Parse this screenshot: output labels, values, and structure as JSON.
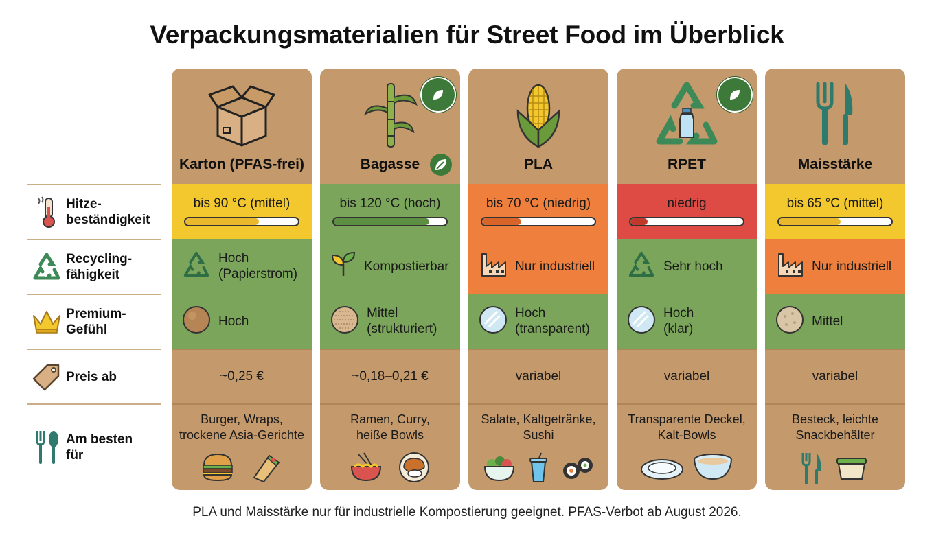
{
  "title": "Verpackungsmaterialien für Street Food im Überblick",
  "footnote": "PLA und Maisstärke nur für industrielle Kompostierung geeignet. PFAS-Verbot ab August 2026.",
  "colors": {
    "card": "#c49a6c",
    "green": "#7aa55a",
    "yellow": "#f2c82e",
    "orange": "#ee7f3c",
    "red": "#de4b45"
  },
  "row_labels": [
    {
      "text": "Hitze-\nbeständigkeit",
      "icon": "thermometer-icon"
    },
    {
      "text": "Recycling-\nfähigkeit",
      "icon": "recycle-icon"
    },
    {
      "text": "Premium-\nGefühl",
      "icon": "crown-icon"
    },
    {
      "text": "Preis ab",
      "icon": "price-tag-icon"
    },
    {
      "text": "Am besten\nfür",
      "icon": "cutlery-icon"
    }
  ],
  "materials": [
    {
      "name": "Karton (PFAS-frei)",
      "icon": "cardboard-box-icon",
      "heat": "bis 90 °C (mittel)",
      "heat_level": 0.65,
      "heat_color": "yellow",
      "recycling": "Hoch\n(Papierstrom)",
      "recycling_color": "green",
      "recycling_icon": "recycle-icon",
      "premium": "Hoch",
      "premium_color": "green",
      "premium_icon": "kraft-texture-icon",
      "price": "~0,25 €",
      "best_for": "Burger, Wraps,\ntrockene Asia-Gerichte",
      "best_icons": [
        "burger-icon",
        "wrap-icon"
      ]
    },
    {
      "name": "Bagasse",
      "icon": "sugarcane-icon",
      "heat": "bis 120 °C (hoch)",
      "heat_level": 0.85,
      "heat_color": "green",
      "recycling": "Kompostierbar",
      "recycling_color": "green",
      "recycling_icon": "sprout-icon",
      "premium": "Mittel\n(strukturiert)",
      "premium_color": "green",
      "premium_icon": "fiber-texture-icon",
      "price": "~0,18–0,21 €",
      "best_for": "Ramen, Curry,\nheiße Bowls",
      "best_icons": [
        "ramen-bowl-icon",
        "curry-plate-icon"
      ]
    },
    {
      "name": "PLA",
      "icon": "corn-icon",
      "heat": "bis 70 °C (niedrig)",
      "heat_level": 0.35,
      "heat_color": "orange",
      "recycling": "Nur industriell",
      "recycling_color": "orange",
      "recycling_icon": "factory-icon",
      "premium": "Hoch\n(transparent)",
      "premium_color": "green",
      "premium_icon": "transparent-disc-icon",
      "price": "variabel",
      "best_for": "Salate, Kaltgetränke,\nSushi",
      "best_icons": [
        "salad-bowl-icon",
        "cold-drink-icon",
        "sushi-icon"
      ]
    },
    {
      "name": "RPET",
      "icon": "recycled-bottle-icon",
      "heat": "niedrig",
      "heat_level": 0.15,
      "heat_color": "red",
      "recycling": "Sehr hoch",
      "recycling_color": "green",
      "recycling_icon": "recycle-icon",
      "premium": "Hoch\n(klar)",
      "premium_color": "green",
      "premium_icon": "transparent-disc-icon",
      "price": "variabel",
      "best_for": "Transparente Deckel,\nKalt-Bowls",
      "best_icons": [
        "lid-icon",
        "clear-bowl-icon"
      ]
    },
    {
      "name": "Maisstärke",
      "icon": "fork-knife-icon",
      "heat": "bis 65 °C (mittel)",
      "heat_level": 0.55,
      "heat_color": "yellow",
      "recycling": "Nur industriell",
      "recycling_color": "orange",
      "recycling_icon": "factory-icon",
      "premium": "Mittel",
      "premium_color": "green",
      "premium_icon": "starch-texture-icon",
      "price": "variabel",
      "best_for": "Besteck, leichte\nSnackbehälter",
      "best_icons": [
        "cutlery-icon",
        "snack-box-icon"
      ]
    }
  ]
}
